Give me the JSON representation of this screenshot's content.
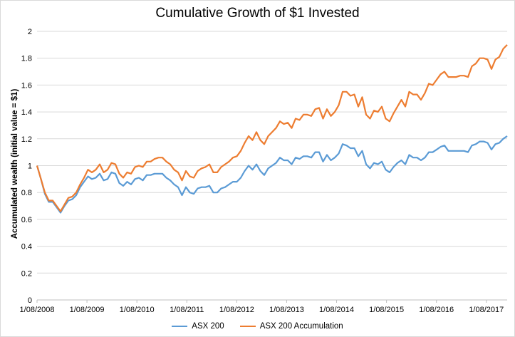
{
  "chart_data": {
    "type": "line",
    "title": "Cumulative Growth of $1 Invested",
    "xlabel": "",
    "ylabel": "Accumulated wealth (initial value = $1)",
    "ylim": [
      0,
      2
    ],
    "yticks": [
      "0",
      "0.2",
      "0.4",
      "0.6",
      "0.8",
      "1",
      "1.2",
      "1.4",
      "1.6",
      "1.8",
      "2"
    ],
    "xticks": [
      "1/08/2008",
      "1/08/2009",
      "1/08/2010",
      "1/08/2011",
      "1/08/2012",
      "1/08/2013",
      "1/08/2014",
      "1/08/2015",
      "1/08/2016",
      "1/08/2017"
    ],
    "grid": "horizontal",
    "legend_position": "bottom",
    "x_start": "2008-08",
    "x_end": "2018-01",
    "series": [
      {
        "name": "ASX 200",
        "color": "#5b9bd5",
        "values": [
          1.0,
          0.9,
          0.79,
          0.73,
          0.73,
          0.69,
          0.65,
          0.7,
          0.74,
          0.75,
          0.78,
          0.84,
          0.88,
          0.92,
          0.9,
          0.91,
          0.94,
          0.89,
          0.9,
          0.95,
          0.94,
          0.87,
          0.85,
          0.88,
          0.86,
          0.9,
          0.91,
          0.89,
          0.93,
          0.93,
          0.94,
          0.94,
          0.94,
          0.91,
          0.89,
          0.86,
          0.84,
          0.78,
          0.84,
          0.8,
          0.79,
          0.83,
          0.84,
          0.84,
          0.85,
          0.8,
          0.8,
          0.83,
          0.84,
          0.86,
          0.88,
          0.88,
          0.91,
          0.96,
          1.0,
          0.97,
          1.01,
          0.96,
          0.93,
          0.98,
          1.0,
          1.02,
          1.06,
          1.04,
          1.04,
          1.01,
          1.06,
          1.05,
          1.07,
          1.07,
          1.06,
          1.1,
          1.1,
          1.03,
          1.08,
          1.04,
          1.06,
          1.09,
          1.16,
          1.15,
          1.13,
          1.13,
          1.07,
          1.11,
          1.01,
          0.98,
          1.02,
          1.01,
          1.03,
          0.97,
          0.95,
          0.99,
          1.02,
          1.04,
          1.01,
          1.08,
          1.06,
          1.06,
          1.04,
          1.06,
          1.1,
          1.1,
          1.12,
          1.14,
          1.15,
          1.11,
          1.11,
          1.11,
          1.11,
          1.11,
          1.1,
          1.15,
          1.16,
          1.18,
          1.18,
          1.17,
          1.12,
          1.16,
          1.17,
          1.2,
          1.22
        ]
      },
      {
        "name": "ASX 200 Accumulation",
        "color": "#ed7d31",
        "values": [
          1.0,
          0.9,
          0.8,
          0.74,
          0.74,
          0.7,
          0.66,
          0.71,
          0.76,
          0.77,
          0.8,
          0.86,
          0.91,
          0.97,
          0.95,
          0.97,
          1.01,
          0.95,
          0.97,
          1.02,
          1.01,
          0.94,
          0.91,
          0.95,
          0.94,
          0.99,
          1.0,
          0.99,
          1.03,
          1.03,
          1.05,
          1.06,
          1.06,
          1.03,
          1.01,
          0.97,
          0.95,
          0.89,
          0.96,
          0.92,
          0.91,
          0.96,
          0.98,
          0.99,
          1.01,
          0.95,
          0.95,
          0.99,
          1.01,
          1.03,
          1.06,
          1.07,
          1.11,
          1.17,
          1.22,
          1.19,
          1.25,
          1.19,
          1.16,
          1.22,
          1.25,
          1.28,
          1.33,
          1.31,
          1.32,
          1.28,
          1.35,
          1.34,
          1.38,
          1.38,
          1.37,
          1.42,
          1.43,
          1.35,
          1.42,
          1.37,
          1.4,
          1.45,
          1.55,
          1.55,
          1.52,
          1.53,
          1.44,
          1.51,
          1.38,
          1.35,
          1.41,
          1.4,
          1.44,
          1.35,
          1.33,
          1.39,
          1.44,
          1.49,
          1.44,
          1.55,
          1.53,
          1.53,
          1.49,
          1.54,
          1.61,
          1.6,
          1.64,
          1.68,
          1.7,
          1.66,
          1.66,
          1.66,
          1.67,
          1.67,
          1.66,
          1.74,
          1.76,
          1.8,
          1.8,
          1.79,
          1.72,
          1.79,
          1.81,
          1.87,
          1.9
        ]
      }
    ]
  }
}
